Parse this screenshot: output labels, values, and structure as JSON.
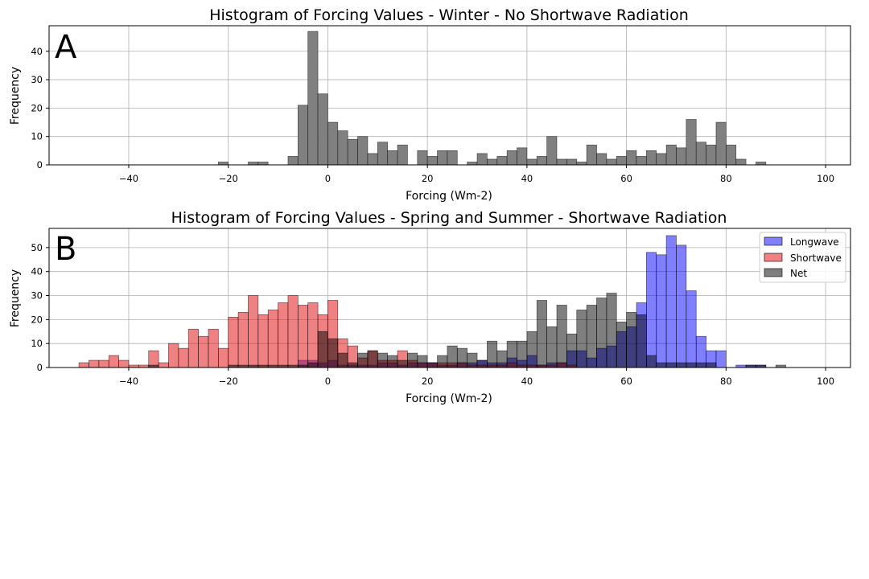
{
  "chart_data": [
    {
      "type": "bar",
      "panel_label": "A",
      "title": "Histogram of Forcing Values - Winter - No Shortwave Radiation",
      "xlabel": "Forcing (Wm-2)",
      "ylabel": "Frequency",
      "xlim": [
        -56,
        105
      ],
      "ylim": [
        0,
        49
      ],
      "xticks": [
        -40,
        -20,
        0,
        20,
        40,
        60,
        80,
        100
      ],
      "yticks": [
        0,
        10,
        20,
        30,
        40
      ],
      "grid": true,
      "bin_width": 2,
      "series": [
        {
          "color": "#808080",
          "bins": [
            [
              -22,
              1
            ],
            [
              -16,
              1
            ],
            [
              -14,
              1
            ],
            [
              -8,
              3
            ],
            [
              -6,
              21
            ],
            [
              -4,
              47
            ],
            [
              -2,
              25
            ],
            [
              0,
              15
            ],
            [
              2,
              12
            ],
            [
              4,
              9
            ],
            [
              6,
              10
            ],
            [
              8,
              4
            ],
            [
              10,
              8
            ],
            [
              12,
              5
            ],
            [
              14,
              7
            ],
            [
              18,
              5
            ],
            [
              20,
              3
            ],
            [
              22,
              5
            ],
            [
              24,
              5
            ],
            [
              28,
              1
            ],
            [
              30,
              4
            ],
            [
              32,
              2
            ],
            [
              34,
              3
            ],
            [
              36,
              5
            ],
            [
              38,
              6
            ],
            [
              40,
              2
            ],
            [
              42,
              3
            ],
            [
              44,
              10
            ],
            [
              46,
              2
            ],
            [
              48,
              2
            ],
            [
              50,
              1
            ],
            [
              52,
              7
            ],
            [
              54,
              4
            ],
            [
              56,
              2
            ],
            [
              58,
              3
            ],
            [
              60,
              5
            ],
            [
              62,
              3
            ],
            [
              64,
              5
            ],
            [
              66,
              4
            ],
            [
              68,
              7
            ],
            [
              70,
              6
            ],
            [
              72,
              16
            ],
            [
              74,
              8
            ],
            [
              76,
              7
            ],
            [
              78,
              15
            ],
            [
              80,
              7
            ],
            [
              82,
              2
            ],
            [
              86,
              1
            ]
          ]
        }
      ]
    },
    {
      "type": "bar",
      "panel_label": "B",
      "title": "Histogram of Forcing Values - Spring and Summer - Shortwave Radiation",
      "xlabel": "Forcing (Wm-2)",
      "ylabel": "Frequency",
      "xlim": [
        -56,
        105
      ],
      "ylim": [
        0,
        58
      ],
      "xticks": [
        -40,
        -20,
        0,
        20,
        40,
        60,
        80,
        100
      ],
      "yticks": [
        0,
        10,
        20,
        30,
        40,
        50
      ],
      "grid": true,
      "legend_position": "top-right",
      "bin_width": 2,
      "series": [
        {
          "name": "Longwave",
          "color": "#0000ff",
          "alpha": 0.5,
          "bins": [
            [
              -36,
              0
            ],
            [
              -6,
              3
            ],
            [
              -4,
              3
            ],
            [
              -2,
              2
            ],
            [
              0,
              3
            ],
            [
              2,
              1
            ],
            [
              4,
              1
            ],
            [
              6,
              1
            ],
            [
              8,
              1
            ],
            [
              10,
              2
            ],
            [
              12,
              2
            ],
            [
              14,
              1
            ],
            [
              16,
              2
            ],
            [
              18,
              2
            ],
            [
              20,
              2
            ],
            [
              22,
              1
            ],
            [
              24,
              1
            ],
            [
              26,
              2
            ],
            [
              28,
              2
            ],
            [
              30,
              3
            ],
            [
              32,
              2
            ],
            [
              34,
              2
            ],
            [
              36,
              4
            ],
            [
              38,
              3
            ],
            [
              40,
              5
            ],
            [
              42,
              1
            ],
            [
              44,
              2
            ],
            [
              46,
              2
            ],
            [
              48,
              7
            ],
            [
              50,
              7
            ],
            [
              52,
              4
            ],
            [
              54,
              8
            ],
            [
              56,
              9
            ],
            [
              58,
              15
            ],
            [
              60,
              17
            ],
            [
              62,
              27
            ],
            [
              64,
              48
            ],
            [
              66,
              47
            ],
            [
              68,
              55
            ],
            [
              70,
              51
            ],
            [
              72,
              32
            ],
            [
              74,
              13
            ],
            [
              76,
              7
            ],
            [
              78,
              7
            ],
            [
              82,
              1
            ],
            [
              84,
              1
            ],
            [
              86,
              1
            ]
          ]
        },
        {
          "name": "Shortwave",
          "color": "#e41a1c",
          "alpha": 0.55,
          "bins": [
            [
              -50,
              2
            ],
            [
              -48,
              3
            ],
            [
              -46,
              3
            ],
            [
              -44,
              5
            ],
            [
              -42,
              3
            ],
            [
              -40,
              1
            ],
            [
              -38,
              1
            ],
            [
              -36,
              7
            ],
            [
              -34,
              2
            ],
            [
              -32,
              10
            ],
            [
              -30,
              8
            ],
            [
              -28,
              16
            ],
            [
              -26,
              13
            ],
            [
              -24,
              16
            ],
            [
              -22,
              8
            ],
            [
              -20,
              21
            ],
            [
              -18,
              23
            ],
            [
              -16,
              30
            ],
            [
              -14,
              22
            ],
            [
              -12,
              24
            ],
            [
              -10,
              27
            ],
            [
              -8,
              30
            ],
            [
              -6,
              26
            ],
            [
              -4,
              27
            ],
            [
              -2,
              22
            ],
            [
              0,
              28
            ],
            [
              2,
              12
            ],
            [
              4,
              9
            ],
            [
              6,
              4
            ],
            [
              8,
              7
            ],
            [
              10,
              3
            ],
            [
              12,
              3
            ],
            [
              14,
              7
            ],
            [
              16,
              3
            ],
            [
              18,
              2
            ],
            [
              20,
              2
            ],
            [
              22,
              2
            ],
            [
              24,
              2
            ],
            [
              26,
              2
            ],
            [
              28,
              1
            ],
            [
              30,
              1
            ],
            [
              32,
              1
            ],
            [
              34,
              1
            ],
            [
              36,
              2
            ],
            [
              38,
              1
            ],
            [
              40,
              1
            ],
            [
              42,
              1
            ],
            [
              44,
              1
            ],
            [
              46,
              2
            ],
            [
              48,
              1
            ]
          ]
        },
        {
          "name": "Net",
          "color": "#000000",
          "alpha": 0.5,
          "bins": [
            [
              -36,
              1
            ],
            [
              -20,
              1
            ],
            [
              -18,
              1
            ],
            [
              -16,
              1
            ],
            [
              -14,
              1
            ],
            [
              -12,
              1
            ],
            [
              -10,
              1
            ],
            [
              -8,
              1
            ],
            [
              -6,
              1
            ],
            [
              -4,
              2
            ],
            [
              -2,
              15
            ],
            [
              0,
              12
            ],
            [
              2,
              6
            ],
            [
              4,
              2
            ],
            [
              6,
              6
            ],
            [
              8,
              7
            ],
            [
              10,
              6
            ],
            [
              12,
              5
            ],
            [
              14,
              3
            ],
            [
              16,
              6
            ],
            [
              18,
              5
            ],
            [
              20,
              2
            ],
            [
              22,
              5
            ],
            [
              24,
              9
            ],
            [
              26,
              8
            ],
            [
              28,
              6
            ],
            [
              30,
              3
            ],
            [
              32,
              11
            ],
            [
              34,
              7
            ],
            [
              36,
              11
            ],
            [
              38,
              11
            ],
            [
              40,
              15
            ],
            [
              42,
              28
            ],
            [
              44,
              17
            ],
            [
              46,
              26
            ],
            [
              48,
              14
            ],
            [
              50,
              24
            ],
            [
              52,
              26
            ],
            [
              54,
              29
            ],
            [
              56,
              31
            ],
            [
              58,
              19
            ],
            [
              60,
              23
            ],
            [
              62,
              22
            ],
            [
              64,
              5
            ],
            [
              66,
              2
            ],
            [
              68,
              2
            ],
            [
              70,
              2
            ],
            [
              72,
              2
            ],
            [
              74,
              2
            ],
            [
              76,
              2
            ],
            [
              84,
              1
            ],
            [
              86,
              1
            ],
            [
              90,
              1
            ]
          ]
        }
      ]
    }
  ]
}
